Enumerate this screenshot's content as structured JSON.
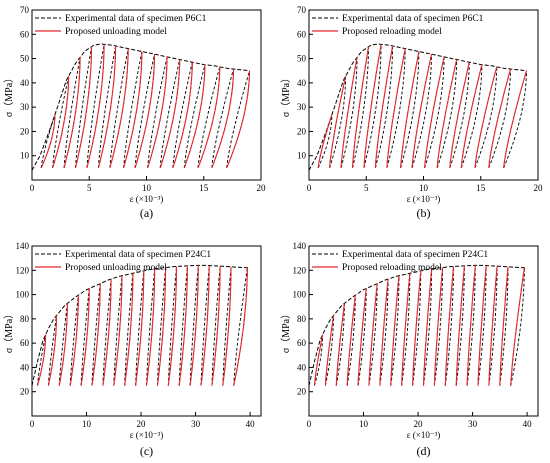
{
  "chart_data": [
    {
      "type": "line",
      "panel": "a",
      "caption": "(a)",
      "xlabel": "ε (×10⁻³)",
      "ylabel": "σ（MPa）",
      "xlim": [
        0,
        20
      ],
      "ylim": [
        0,
        70
      ],
      "xticks": [
        0,
        5,
        10,
        15,
        20
      ],
      "yticks": [
        10,
        20,
        30,
        40,
        50,
        60,
        70
      ],
      "legend_position": "top-left",
      "series": [
        {
          "name": "Experimental data of specimen P6C1",
          "color": "#000000",
          "style": "dashed"
        },
        {
          "name": "Proposed unloading model",
          "color": "#e8262a",
          "style": "solid"
        }
      ],
      "envelope": {
        "x": [
          0,
          0.7,
          1.5,
          2.3,
          3.0,
          3.8,
          4.6,
          5.4,
          6.0,
          7.0,
          8.0,
          9.0,
          10.0,
          11.0,
          12.0,
          13.0,
          14.0,
          15.0,
          16.0,
          17.0,
          18.0,
          19.0
        ],
        "y": [
          4,
          10,
          20,
          31,
          41,
          48,
          53,
          55.5,
          56,
          55.5,
          54.5,
          53.5,
          52.5,
          51.5,
          50.5,
          49.5,
          48.5,
          47.5,
          47,
          46,
          45.5,
          45
        ]
      },
      "cycles": {
        "unload_from_x": [
          2.0,
          3.2,
          4.2,
          5.2,
          6.3,
          7.3,
          8.4,
          9.6,
          10.7,
          11.8,
          12.9,
          14.0,
          15.1,
          16.4,
          17.6,
          19.0
        ],
        "residual_x": [
          0.8,
          1.8,
          2.8,
          3.8,
          4.8,
          5.8,
          6.8,
          8.0,
          9.0,
          10.1,
          11.2,
          12.3,
          13.3,
          14.5,
          15.7,
          17.0
        ],
        "base_y": 5,
        "model_direction": "unloading"
      }
    },
    {
      "type": "line",
      "panel": "b",
      "caption": "(b)",
      "xlabel": "ε (×10⁻³)",
      "ylabel": "σ（MPa）",
      "xlim": [
        0,
        20
      ],
      "ylim": [
        0,
        70
      ],
      "xticks": [
        0,
        5,
        10,
        15,
        20
      ],
      "yticks": [
        10,
        20,
        30,
        40,
        50,
        60,
        70
      ],
      "legend_position": "top-left",
      "series": [
        {
          "name": "Experimental data of specimen P6C1",
          "color": "#000000",
          "style": "dashed"
        },
        {
          "name": "Proposed reloading model",
          "color": "#e8262a",
          "style": "solid"
        }
      ],
      "envelope": {
        "x": [
          0,
          0.7,
          1.5,
          2.3,
          3.0,
          3.8,
          4.6,
          5.4,
          6.0,
          7.0,
          8.0,
          9.0,
          10.0,
          11.0,
          12.0,
          13.0,
          14.0,
          15.0,
          16.0,
          17.0,
          18.0,
          19.0
        ],
        "y": [
          4,
          10,
          20,
          31,
          41,
          48,
          53,
          55.5,
          56,
          55.5,
          54.5,
          53.5,
          52.5,
          51.5,
          50.5,
          49.5,
          48.5,
          47.5,
          47,
          46,
          45.5,
          45
        ]
      },
      "cycles": {
        "unload_from_x": [
          2.0,
          3.2,
          4.2,
          5.2,
          6.3,
          7.3,
          8.4,
          9.6,
          10.7,
          11.8,
          12.9,
          14.0,
          15.1,
          16.4,
          17.6,
          19.0
        ],
        "residual_x": [
          0.8,
          1.8,
          2.8,
          3.8,
          4.8,
          5.8,
          6.8,
          8.0,
          9.0,
          10.1,
          11.2,
          12.3,
          13.3,
          14.5,
          15.7,
          17.0
        ],
        "base_y": 5,
        "model_direction": "reloading"
      }
    },
    {
      "type": "line",
      "panel": "c",
      "caption": "(c)",
      "xlabel": "ε (×10⁻³)",
      "ylabel": "σ（MPa）",
      "xlim": [
        0,
        42
      ],
      "ylim": [
        0,
        140
      ],
      "xticks": [
        0,
        10,
        20,
        30,
        40
      ],
      "yticks": [
        20,
        40,
        60,
        80,
        100,
        120,
        140
      ],
      "legend_position": "top-left",
      "series": [
        {
          "name": "Experimental data of specimen P24C1",
          "color": "#000000",
          "style": "dashed"
        },
        {
          "name": "Proposed unloading model",
          "color": "#e8262a",
          "style": "solid"
        }
      ],
      "envelope": {
        "x": [
          0,
          1,
          2,
          3,
          4,
          6,
          8,
          10,
          12,
          14,
          16,
          18,
          20,
          22,
          24,
          26,
          28,
          30,
          32,
          34,
          36,
          38,
          40
        ],
        "y": [
          25,
          45,
          62,
          72,
          80,
          91,
          98,
          104,
          108,
          112,
          115,
          117,
          119,
          121,
          122,
          123,
          123.5,
          124,
          124,
          123.5,
          123,
          122.5,
          122
        ]
      },
      "cycles": {
        "unload_from_x": [
          2.5,
          4.5,
          6.5,
          8.5,
          10.5,
          12.5,
          14.5,
          16.5,
          18.5,
          20.5,
          22.5,
          24.5,
          26.5,
          28.5,
          30.5,
          32.5,
          34.5,
          36.5,
          39.5
        ],
        "residual_x": [
          1.0,
          3.0,
          5.0,
          7.0,
          9.0,
          11.0,
          13.0,
          15.0,
          17.0,
          19.0,
          21.0,
          23.0,
          25.0,
          27.0,
          29.0,
          31.0,
          33.0,
          35.0,
          37.0
        ],
        "base_y": 25,
        "model_direction": "unloading"
      }
    },
    {
      "type": "line",
      "panel": "d",
      "caption": "(d)",
      "xlabel": "ε (×10⁻³)",
      "ylabel": "σ（MPa）",
      "xlim": [
        0,
        42
      ],
      "ylim": [
        0,
        140
      ],
      "xticks": [
        0,
        10,
        20,
        30,
        40
      ],
      "yticks": [
        20,
        40,
        60,
        80,
        100,
        120,
        140
      ],
      "legend_position": "top-left",
      "series": [
        {
          "name": "Experimental data of specimen P24C1",
          "color": "#000000",
          "style": "dashed"
        },
        {
          "name": "Proposed reloading model",
          "color": "#e8262a",
          "style": "solid"
        }
      ],
      "envelope": {
        "x": [
          0,
          1,
          2,
          3,
          4,
          6,
          8,
          10,
          12,
          14,
          16,
          18,
          20,
          22,
          24,
          26,
          28,
          30,
          32,
          34,
          36,
          38,
          40
        ],
        "y": [
          25,
          45,
          62,
          72,
          80,
          91,
          98,
          104,
          108,
          112,
          115,
          117,
          119,
          121,
          122,
          123,
          123.5,
          124,
          124,
          123.5,
          123,
          122.5,
          122
        ]
      },
      "cycles": {
        "unload_from_x": [
          2.5,
          4.5,
          6.5,
          8.5,
          10.5,
          12.5,
          14.5,
          16.5,
          18.5,
          20.5,
          22.5,
          24.5,
          26.5,
          28.5,
          30.5,
          32.5,
          34.5,
          36.5,
          39.5
        ],
        "residual_x": [
          1.0,
          3.0,
          5.0,
          7.0,
          9.0,
          11.0,
          13.0,
          15.0,
          17.0,
          19.0,
          21.0,
          23.0,
          25.0,
          27.0,
          29.0,
          31.0,
          33.0,
          35.0,
          37.0
        ],
        "base_y": 25,
        "model_direction": "reloading"
      }
    }
  ]
}
